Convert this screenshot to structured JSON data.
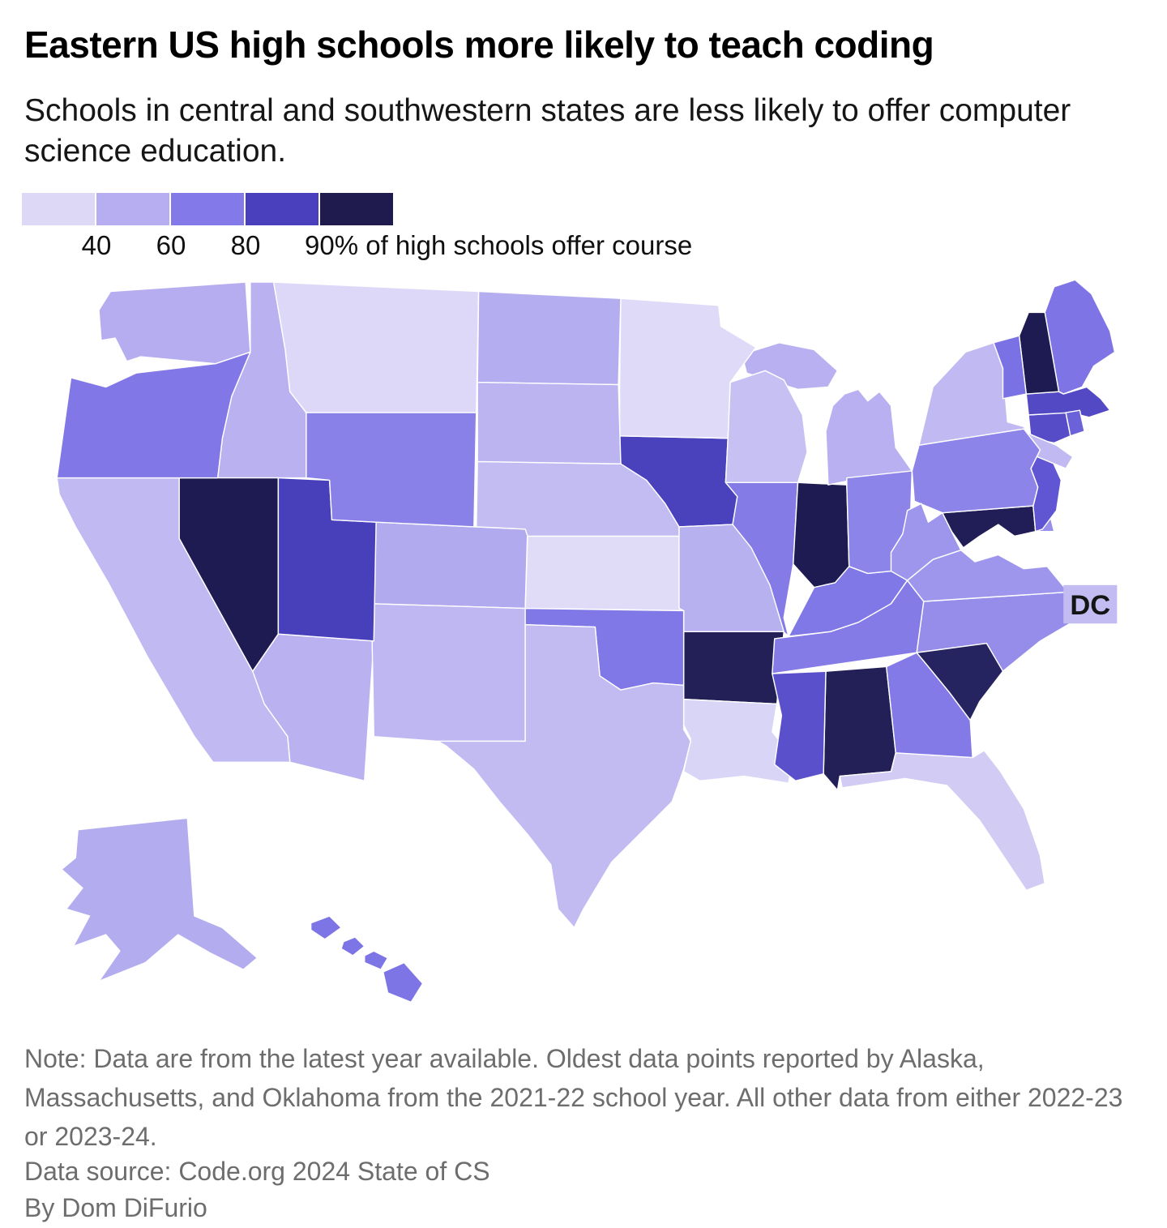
{
  "header": {
    "title": "Eastern US high schools more likely to teach coding",
    "subtitle": "Schools in central and southwestern states are less likely to offer computer science education."
  },
  "legend": {
    "tick_labels": [
      "40",
      "60",
      "80"
    ],
    "scale_label": "90% of high schools offer course"
  },
  "map": {
    "dc_label": "DC"
  },
  "footer": {
    "note": "Note: Data are from the latest year available. Oldest data points reported by Alaska, Massachusetts, and Oklahoma from the 2021-22 school year. All other data from either 2022-23 or 2023-24.",
    "source": "Data source: Code.org 2024 State of CS",
    "byline": "By Dom DiFurio"
  },
  "chart_data": {
    "type": "choropleth",
    "title": "Eastern US high schools more likely to teach coding",
    "subtitle": "Schools in central and southwestern states are less likely to offer computer science education.",
    "metric": "% of high schools offer course",
    "legend": {
      "thresholds": [
        40,
        60,
        80,
        90
      ],
      "bucket_labels": [
        "under 40",
        "40-60",
        "60-80",
        "80-90",
        "90+"
      ],
      "colors": [
        "#ded8f7",
        "#b7aef2",
        "#8379e8",
        "#4a3fbc",
        "#201b4e"
      ]
    },
    "states": [
      {
        "name": "Alabama",
        "abbr": "AL",
        "fill": "#232058",
        "bucket": "90+",
        "value_pct_est": 94
      },
      {
        "name": "Alaska",
        "abbr": "AK",
        "fill": "#b3adf0",
        "bucket": "40-60",
        "value_pct_est": 56
      },
      {
        "name": "Arizona",
        "abbr": "AZ",
        "fill": "#bab2f0",
        "bucket": "40-60",
        "value_pct_est": 54
      },
      {
        "name": "Arkansas",
        "abbr": "AR",
        "fill": "#232058",
        "bucket": "90+",
        "value_pct_est": 94
      },
      {
        "name": "California",
        "abbr": "CA",
        "fill": "#c0b9f2",
        "bucket": "40-60",
        "value_pct_est": 51
      },
      {
        "name": "Colorado",
        "abbr": "CO",
        "fill": "#b2aaee",
        "bucket": "40-60",
        "value_pct_est": 57
      },
      {
        "name": "Connecticut",
        "abbr": "CT",
        "fill": "#564cc8",
        "bucket": "80-90",
        "value_pct_est": 84
      },
      {
        "name": "Delaware",
        "abbr": "DE",
        "fill": "#9890eb",
        "bucket": "60-80",
        "value_pct_est": 66
      },
      {
        "name": "District of Columbia",
        "abbr": "DC",
        "fill": "#c3bcf2",
        "bucket": "40-60",
        "value_pct_est": 50
      },
      {
        "name": "Florida",
        "abbr": "FL",
        "fill": "#d2ccf5",
        "bucket": "40-60",
        "value_pct_est": 44
      },
      {
        "name": "Georgia",
        "abbr": "GA",
        "fill": "#837ae8",
        "bucket": "60-80",
        "value_pct_est": 70
      },
      {
        "name": "Hawaii",
        "abbr": "HI",
        "fill": "#7d75e5",
        "bucket": "60-80",
        "value_pct_est": 72
      },
      {
        "name": "Idaho",
        "abbr": "ID",
        "fill": "#b9b1f0",
        "bucket": "40-60",
        "value_pct_est": 55
      },
      {
        "name": "Illinois",
        "abbr": "IL",
        "fill": "#847be7",
        "bucket": "60-80",
        "value_pct_est": 70
      },
      {
        "name": "Indiana",
        "abbr": "IN",
        "fill": "#1e1b52",
        "bucket": "90+",
        "value_pct_est": 95
      },
      {
        "name": "Iowa",
        "abbr": "IA",
        "fill": "#4a42bc",
        "bucket": "80-90",
        "value_pct_est": 86
      },
      {
        "name": "Kansas",
        "abbr": "KS",
        "fill": "#e0dcf8",
        "bucket": "under 40",
        "value_pct_est": 34
      },
      {
        "name": "Kentucky",
        "abbr": "KY",
        "fill": "#8078e6",
        "bucket": "60-80",
        "value_pct_est": 71
      },
      {
        "name": "Louisiana",
        "abbr": "LA",
        "fill": "#d9d5f7",
        "bucket": "under 40",
        "value_pct_est": 40
      },
      {
        "name": "Maine",
        "abbr": "ME",
        "fill": "#7e74e6",
        "bucket": "60-80",
        "value_pct_est": 73
      },
      {
        "name": "Maryland",
        "abbr": "MD",
        "fill": "#211e57",
        "bucket": "90+",
        "value_pct_est": 96
      },
      {
        "name": "Massachusetts",
        "abbr": "MA",
        "fill": "#5349c5",
        "bucket": "80-90",
        "value_pct_est": 84
      },
      {
        "name": "Michigan",
        "abbr": "MI",
        "fill": "#b8b0f0",
        "bucket": "40-60",
        "value_pct_est": 56
      },
      {
        "name": "Minnesota",
        "abbr": "MN",
        "fill": "#dedaf8",
        "bucket": "under 40",
        "value_pct_est": 36
      },
      {
        "name": "Mississippi",
        "abbr": "MS",
        "fill": "#5a50cb",
        "bucket": "80-90",
        "value_pct_est": 82
      },
      {
        "name": "Missouri",
        "abbr": "MO",
        "fill": "#b8b1f0",
        "bucket": "40-60",
        "value_pct_est": 55
      },
      {
        "name": "Montana",
        "abbr": "MT",
        "fill": "#ddd8f7",
        "bucket": "under 40",
        "value_pct_est": 32
      },
      {
        "name": "Nebraska",
        "abbr": "NE",
        "fill": "#c3bcf2",
        "bucket": "40-60",
        "value_pct_est": 50
      },
      {
        "name": "Nevada",
        "abbr": "NV",
        "fill": "#1e1b52",
        "bucket": "90+",
        "value_pct_est": 95
      },
      {
        "name": "New Hampshire",
        "abbr": "NH",
        "fill": "#1e1b52",
        "bucket": "90+",
        "value_pct_est": 93
      },
      {
        "name": "New Jersey",
        "abbr": "NJ",
        "fill": "#6056d3",
        "bucket": "80-90",
        "value_pct_est": 80
      },
      {
        "name": "New Mexico",
        "abbr": "NM",
        "fill": "#beb7f1",
        "bucket": "40-60",
        "value_pct_est": 53
      },
      {
        "name": "New York",
        "abbr": "NY",
        "fill": "#c1baf2",
        "bucket": "40-60",
        "value_pct_est": 52
      },
      {
        "name": "North Carolina",
        "abbr": "NC",
        "fill": "#958de9",
        "bucket": "60-80",
        "value_pct_est": 65
      },
      {
        "name": "North Dakota",
        "abbr": "ND",
        "fill": "#b4adef",
        "bucket": "40-60",
        "value_pct_est": 57
      },
      {
        "name": "Ohio",
        "abbr": "OH",
        "fill": "#8c84e9",
        "bucket": "60-80",
        "value_pct_est": 67
      },
      {
        "name": "Oklahoma",
        "abbr": "OK",
        "fill": "#8078e6",
        "bucket": "60-80",
        "value_pct_est": 71
      },
      {
        "name": "Oregon",
        "abbr": "OR",
        "fill": "#8177e6",
        "bucket": "60-80",
        "value_pct_est": 72
      },
      {
        "name": "Pennsylvania",
        "abbr": "PA",
        "fill": "#8c84e9",
        "bucket": "60-80",
        "value_pct_est": 67
      },
      {
        "name": "Rhode Island",
        "abbr": "RI",
        "fill": "#6b62da",
        "bucket": "60-80",
        "value_pct_est": 76
      },
      {
        "name": "South Carolina",
        "abbr": "SC",
        "fill": "#262361",
        "bucket": "90+",
        "value_pct_est": 93
      },
      {
        "name": "South Dakota",
        "abbr": "SD",
        "fill": "#bbb4f0",
        "bucket": "40-60",
        "value_pct_est": 54
      },
      {
        "name": "Tennessee",
        "abbr": "TN",
        "fill": "#847be7",
        "bucket": "60-80",
        "value_pct_est": 70
      },
      {
        "name": "Texas",
        "abbr": "TX",
        "fill": "#c2bbf2",
        "bucket": "40-60",
        "value_pct_est": 51
      },
      {
        "name": "Utah",
        "abbr": "UT",
        "fill": "#4840bb",
        "bucket": "80-90",
        "value_pct_est": 86
      },
      {
        "name": "Vermont",
        "abbr": "VT",
        "fill": "#7a71e4",
        "bucket": "60-80",
        "value_pct_est": 74
      },
      {
        "name": "Virginia",
        "abbr": "VA",
        "fill": "#9e96ec",
        "bucket": "60-80",
        "value_pct_est": 62
      },
      {
        "name": "Washington",
        "abbr": "WA",
        "fill": "#b5adf0",
        "bucket": "40-60",
        "value_pct_est": 56
      },
      {
        "name": "West Virginia",
        "abbr": "WV",
        "fill": "#9e96ec",
        "bucket": "60-80",
        "value_pct_est": 62
      },
      {
        "name": "Wisconsin",
        "abbr": "WI",
        "fill": "#c7c1f3",
        "bucket": "40-60",
        "value_pct_est": 48
      },
      {
        "name": "Wyoming",
        "abbr": "WY",
        "fill": "#8a81e8",
        "bucket": "60-80",
        "value_pct_est": 68
      }
    ]
  }
}
